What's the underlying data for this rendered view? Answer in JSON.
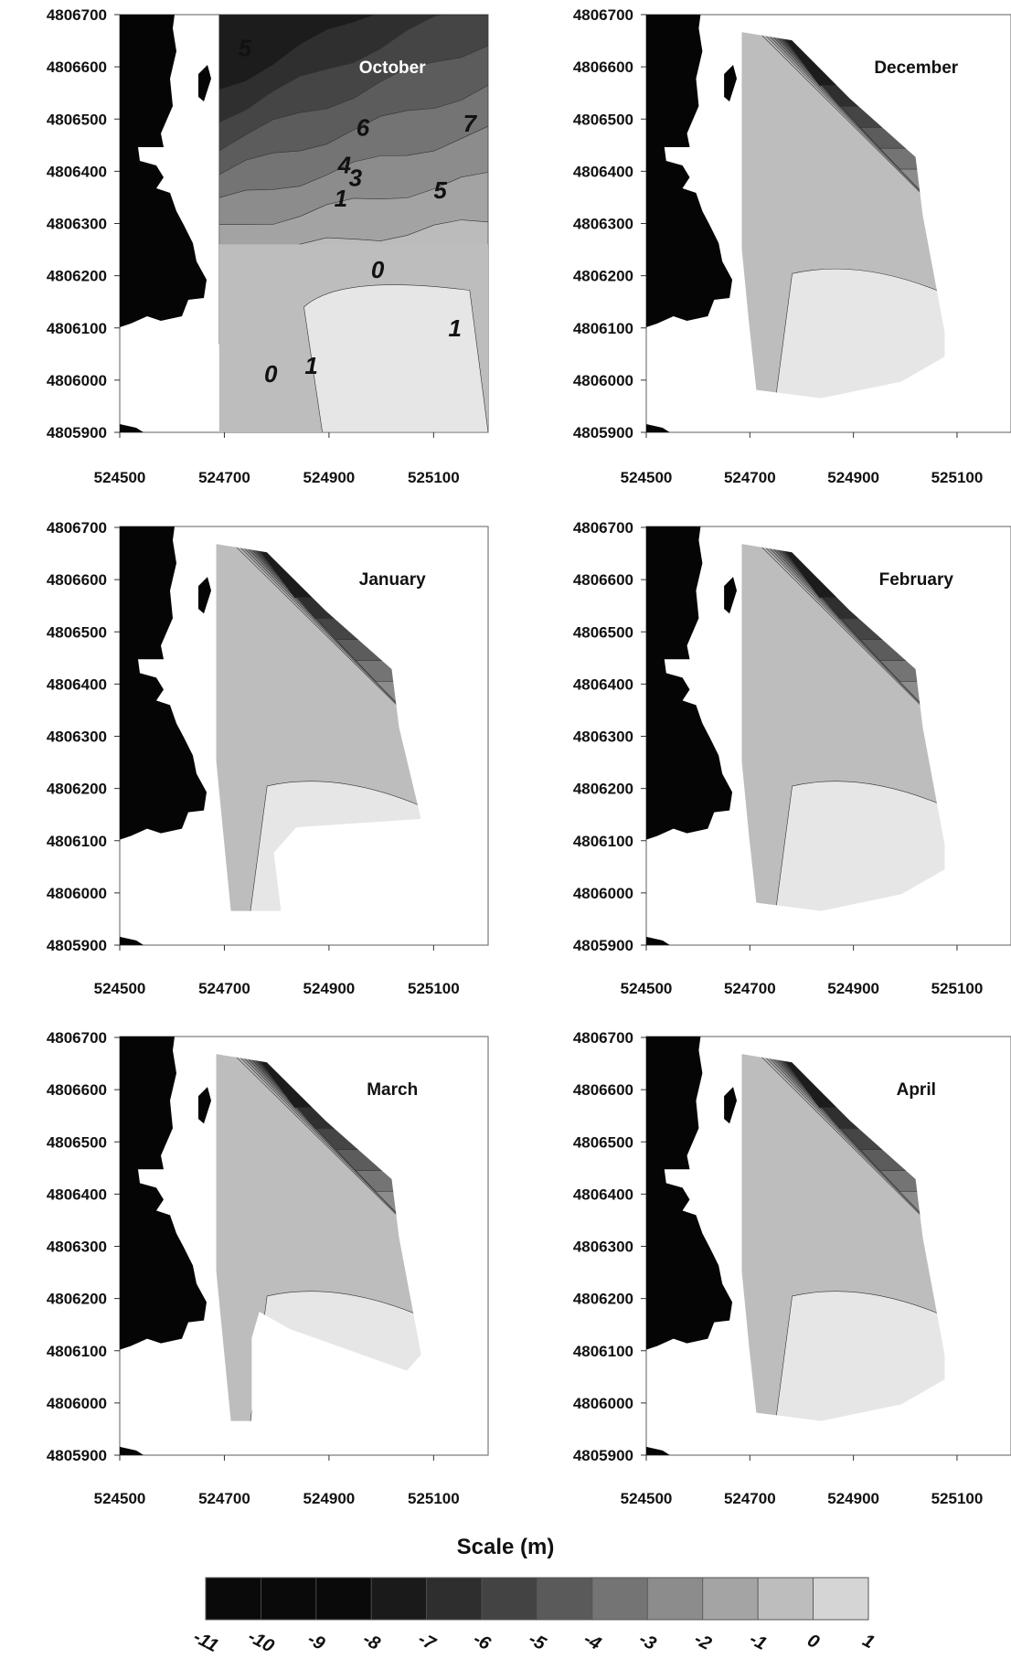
{
  "y_ticks": [
    "4806700",
    "4806600",
    "4806500",
    "4806400",
    "4806300",
    "4806200",
    "4806100",
    "4806000",
    "4805900"
  ],
  "x_ticks": [
    "524500",
    "524700",
    "524900",
    "525100"
  ],
  "panels": [
    {
      "month": "October",
      "contour_labels": [
        "5",
        "6",
        "7",
        "4",
        "3",
        "1",
        "5",
        "0",
        "1",
        "0",
        "1"
      ]
    },
    {
      "month": "December",
      "contour_labels": []
    },
    {
      "month": "January",
      "contour_labels": []
    },
    {
      "month": "February",
      "contour_labels": []
    },
    {
      "month": "March",
      "contour_labels": []
    },
    {
      "month": "April",
      "contour_labels": []
    }
  ],
  "scale": {
    "title": "Scale (m)",
    "ticks": [
      "-11",
      "-10",
      "-9",
      "-8",
      "-7",
      "-6",
      "-5",
      "-4",
      "-3",
      "-2",
      "-1",
      "0",
      "1"
    ],
    "colors": [
      "#0a0a0a",
      "#0a0a0a",
      "#0a0a0a",
      "#1a1a1a",
      "#2e2e2e",
      "#434343",
      "#5a5a5a",
      "#747474",
      "#8c8c8c",
      "#a4a4a4",
      "#bdbdbd",
      "#d5d5d5",
      "#ebebeb"
    ]
  },
  "colors": {
    "land": "#050505",
    "frame": "#7a7a7a",
    "contour_line": "#333333"
  }
}
